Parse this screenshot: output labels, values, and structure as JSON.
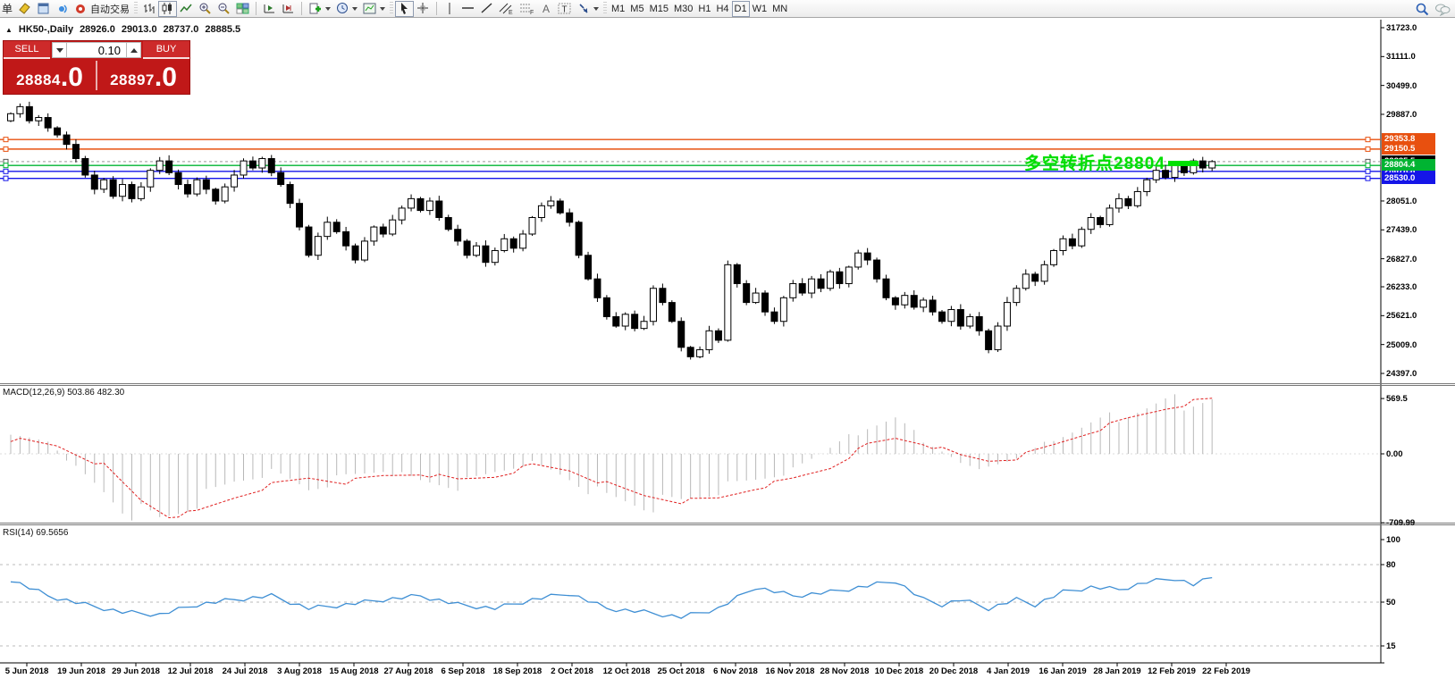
{
  "toolbar": {
    "menu_char": "单",
    "autotrading_label": "自动交易",
    "tool_letters": {
      "channel": "E",
      "fibo": "F",
      "text_tool": "A",
      "label_tool": "T"
    },
    "timeframes": [
      "M1",
      "M5",
      "M15",
      "M30",
      "H1",
      "H4",
      "D1",
      "W1",
      "MN"
    ],
    "active_timeframe": "D1"
  },
  "chart": {
    "title": {
      "symbol": "HK50-,Daily",
      "open": "28926.0",
      "high": "29013.0",
      "low": "28737.0",
      "close": "28885.5"
    },
    "trade_panel": {
      "sell_label": "SELL",
      "buy_label": "BUY",
      "volume": "0.10",
      "sell_price_main": "28884",
      "sell_price_pips": ".0",
      "buy_price_main": "28897",
      "buy_price_pips": ".0"
    },
    "annotation": {
      "text": "多空转折点28804",
      "color": "#00dd00"
    },
    "levels": [
      {
        "label": "29353.8",
        "price": 29353.8,
        "color": "#e8500f",
        "style": "solid"
      },
      {
        "label": "29150.5",
        "price": 29150.5,
        "color": "#e8500f",
        "style": "solid"
      },
      {
        "label": "28885.5",
        "price": 28885.5,
        "color": "#000000",
        "style": "current"
      },
      {
        "label": "28678.8",
        "price": 28678.8,
        "color": "#1515e8",
        "style": "solid"
      },
      {
        "label": "28804.4",
        "price": 28804.4,
        "color": "#00b432",
        "style": "solid"
      },
      {
        "label": "28530.0",
        "price": 28530.0,
        "color": "#1515e8",
        "style": "solid"
      }
    ],
    "highlight_bar_color": "#00e000"
  },
  "macd": {
    "label": "MACD(12,26,9) 503.86 482.30",
    "axis": [
      {
        "t": "569.5",
        "v": 569.5
      },
      {
        "t": "0.00",
        "v": 0
      },
      {
        "t": "-709.99",
        "v": -709.99
      }
    ]
  },
  "rsi": {
    "label": "RSI(14) 69.5656",
    "axis": [
      {
        "t": "100",
        "v": 100
      },
      {
        "t": "80",
        "v": 80
      },
      {
        "t": "50",
        "v": 50
      },
      {
        "t": "15",
        "v": 15
      }
    ],
    "gridlines": [
      80,
      50,
      15
    ]
  },
  "chart_data": {
    "type": "candlestick",
    "symbol": "HK50",
    "timeframe": "Daily",
    "price_ticks": [
      "31723.0",
      "31111.0",
      "30499.0",
      "29887.0",
      "28051.0",
      "27439.0",
      "26827.0",
      "26233.0",
      "25621.0",
      "25009.0",
      "24397.0"
    ],
    "first_open": 29750,
    "closes": [
      29900,
      30050,
      29750,
      29820,
      29600,
      29450,
      29250,
      28950,
      28600,
      28300,
      28500,
      28150,
      28400,
      28100,
      28350,
      28700,
      28900,
      28650,
      28400,
      28200,
      28500,
      28300,
      28050,
      28350,
      28600,
      28900,
      28750,
      28950,
      28650,
      28400,
      28000,
      27500,
      26900,
      27300,
      27600,
      27400,
      27100,
      26800,
      27200,
      27500,
      27350,
      27650,
      27900,
      28100,
      27850,
      28050,
      27700,
      27450,
      27200,
      26900,
      27100,
      26750,
      27000,
      27250,
      27050,
      27350,
      27700,
      27950,
      28050,
      27800,
      27600,
      26900,
      26400,
      26000,
      25600,
      25400,
      25650,
      25350,
      25500,
      26200,
      25900,
      25500,
      24950,
      24750,
      24900,
      25300,
      25100,
      26700,
      26300,
      25900,
      26100,
      25700,
      25500,
      26000,
      26300,
      26100,
      26400,
      26200,
      26550,
      26300,
      26650,
      26950,
      26800,
      26400,
      26000,
      25850,
      26050,
      25800,
      25950,
      25700,
      25500,
      25750,
      25400,
      25600,
      25300,
      24900,
      25400,
      25900,
      26200,
      26500,
      26350,
      26700,
      27000,
      27250,
      27100,
      27450,
      27700,
      27550,
      27900,
      28100,
      27950,
      28250,
      28500,
      28700,
      28550,
      28800,
      28650,
      28900,
      28750,
      28885.5
    ],
    "macd_signal_keypoints": [
      [
        0,
        150
      ],
      [
        5,
        80
      ],
      [
        10,
        -120
      ],
      [
        14,
        -480
      ],
      [
        17,
        -640
      ],
      [
        20,
        -600
      ],
      [
        24,
        -450
      ],
      [
        28,
        -320
      ],
      [
        32,
        -250
      ],
      [
        36,
        -290
      ],
      [
        40,
        -230
      ],
      [
        44,
        -200
      ],
      [
        48,
        -270
      ],
      [
        52,
        -230
      ],
      [
        56,
        -120
      ],
      [
        60,
        -170
      ],
      [
        64,
        -310
      ],
      [
        68,
        -430
      ],
      [
        72,
        -490
      ],
      [
        76,
        -460
      ],
      [
        80,
        -350
      ],
      [
        84,
        -260
      ],
      [
        88,
        -140
      ],
      [
        92,
        90
      ],
      [
        95,
        160
      ],
      [
        98,
        110
      ],
      [
        102,
        -20
      ],
      [
        105,
        -70
      ],
      [
        108,
        -40
      ],
      [
        112,
        90
      ],
      [
        116,
        230
      ],
      [
        120,
        360
      ],
      [
        124,
        470
      ],
      [
        127,
        535
      ],
      [
        129,
        560
      ]
    ],
    "macd_hist_keypoints": [
      [
        0,
        240
      ],
      [
        4,
        120
      ],
      [
        8,
        -240
      ],
      [
        12,
        -560
      ],
      [
        16,
        -700
      ],
      [
        20,
        -490
      ],
      [
        24,
        -290
      ],
      [
        28,
        -190
      ],
      [
        32,
        -360
      ],
      [
        36,
        -240
      ],
      [
        40,
        -170
      ],
      [
        44,
        -290
      ],
      [
        48,
        -330
      ],
      [
        52,
        -190
      ],
      [
        56,
        -90
      ],
      [
        60,
        -260
      ],
      [
        64,
        -460
      ],
      [
        68,
        -530
      ],
      [
        72,
        -500
      ],
      [
        76,
        -370
      ],
      [
        80,
        -270
      ],
      [
        84,
        -170
      ],
      [
        88,
        60
      ],
      [
        92,
        290
      ],
      [
        95,
        360
      ],
      [
        98,
        140
      ],
      [
        102,
        -90
      ],
      [
        105,
        -160
      ],
      [
        108,
        -50
      ],
      [
        112,
        160
      ],
      [
        116,
        310
      ],
      [
        120,
        430
      ],
      [
        124,
        520
      ],
      [
        127,
        555
      ],
      [
        129,
        569.5
      ]
    ],
    "rsi_keypoints": [
      [
        0,
        68
      ],
      [
        4,
        55
      ],
      [
        8,
        48
      ],
      [
        12,
        42
      ],
      [
        16,
        40
      ],
      [
        20,
        48
      ],
      [
        24,
        52
      ],
      [
        28,
        55
      ],
      [
        32,
        45
      ],
      [
        36,
        48
      ],
      [
        40,
        52
      ],
      [
        44,
        55
      ],
      [
        48,
        48
      ],
      [
        52,
        45
      ],
      [
        56,
        52
      ],
      [
        60,
        57
      ],
      [
        64,
        45
      ],
      [
        68,
        42
      ],
      [
        72,
        38
      ],
      [
        76,
        45
      ],
      [
        80,
        62
      ],
      [
        84,
        55
      ],
      [
        88,
        58
      ],
      [
        92,
        63
      ],
      [
        95,
        67
      ],
      [
        98,
        52
      ],
      [
        100,
        48
      ],
      [
        102,
        52
      ],
      [
        105,
        45
      ],
      [
        108,
        52
      ],
      [
        110,
        48
      ],
      [
        113,
        58
      ],
      [
        116,
        62
      ],
      [
        119,
        60
      ],
      [
        122,
        66
      ],
      [
        125,
        69
      ],
      [
        127,
        64
      ],
      [
        129,
        69.57
      ]
    ],
    "date_labels": [
      "5 Jun 2018",
      "19 Jun 2018",
      "29 Jun 2018",
      "12 Jul 2018",
      "24 Jul 2018",
      "3 Aug 2018",
      "15 Aug 2018",
      "27 Aug 2018",
      "6 Sep 2018",
      "18 Sep 2018",
      "2 Oct 2018",
      "12 Oct 2018",
      "25 Oct 2018",
      "6 Nov 2018",
      "16 Nov 2018",
      "28 Nov 2018",
      "10 Dec 2018",
      "20 Dec 2018",
      "4 Jan 2019",
      "16 Jan 2019",
      "28 Jan 2019",
      "12 Feb 2019",
      "22 Feb 2019"
    ]
  }
}
